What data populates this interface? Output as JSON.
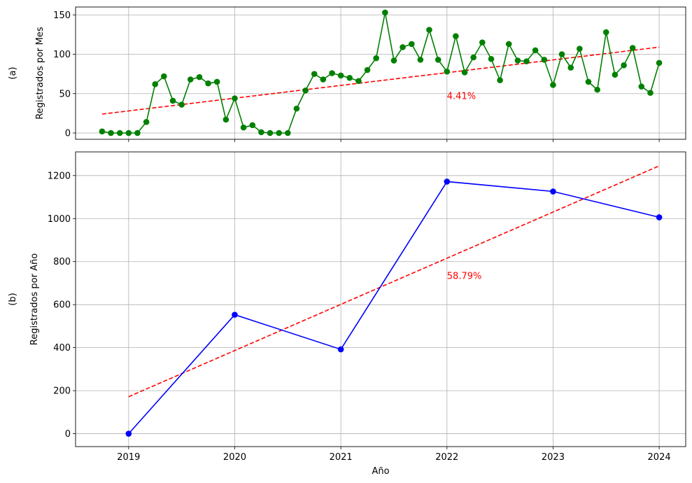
{
  "chart_data": [
    {
      "type": "line",
      "panel_label": "(a)",
      "ylabel": "Registrados por Mes",
      "xlabel": "",
      "ylim": [
        -8,
        160
      ],
      "yticks": [
        0,
        50,
        100,
        150
      ],
      "grid": true,
      "series": [
        {
          "color": "#008000",
          "marker": "circle",
          "x": [
            2018.75,
            2018.833,
            2018.917,
            2019.0,
            2019.083,
            2019.167,
            2019.25,
            2019.333,
            2019.417,
            2019.5,
            2019.583,
            2019.667,
            2019.75,
            2019.833,
            2019.917,
            2020.0,
            2020.083,
            2020.167,
            2020.25,
            2020.333,
            2020.417,
            2020.5,
            2020.583,
            2020.667,
            2020.75,
            2020.833,
            2020.917,
            2021.0,
            2021.083,
            2021.167,
            2021.25,
            2021.333,
            2021.417,
            2021.5,
            2021.583,
            2021.667,
            2021.75,
            2021.833,
            2021.917,
            2022.0,
            2022.083,
            2022.167,
            2022.25,
            2022.333,
            2022.417,
            2022.5,
            2022.583,
            2022.667,
            2022.75,
            2022.833,
            2022.917,
            2023.0,
            2023.083,
            2023.167,
            2023.25,
            2023.333,
            2023.417,
            2023.5,
            2023.583,
            2023.667,
            2023.75,
            2023.833,
            2023.917,
            2024.0
          ],
          "y": [
            2,
            0,
            0,
            0,
            0,
            14,
            62,
            72,
            41,
            36,
            68,
            71,
            63,
            65,
            17,
            44,
            7,
            10,
            1,
            0,
            0,
            0,
            31,
            54,
            75,
            68,
            76,
            73,
            70,
            66,
            80,
            95,
            153,
            92,
            109,
            113,
            93,
            131,
            93,
            78,
            123,
            77,
            96,
            115,
            94,
            67,
            113,
            92,
            91,
            105,
            93,
            61,
            100,
            83,
            107,
            65,
            55,
            128,
            74,
            86,
            108,
            59,
            51,
            89
          ]
        }
      ],
      "trend": {
        "style": "dashed",
        "color": "#ff0000",
        "x": [
          2018.75,
          2024.0
        ],
        "y": [
          24,
          109
        ]
      },
      "annotation": {
        "text": "4.41%",
        "x": 2022.0,
        "y": 43,
        "color": "#ff0000"
      }
    },
    {
      "type": "line",
      "panel_label": "(b)",
      "ylabel": "Registrados por Año",
      "xlabel": "Año",
      "ylim": [
        -60,
        1310
      ],
      "yticks": [
        0,
        200,
        400,
        600,
        800,
        1000,
        1200
      ],
      "grid": true,
      "series": [
        {
          "color": "#0000ff",
          "marker": "circle",
          "x": [
            2019,
            2020,
            2021,
            2022,
            2023,
            2024
          ],
          "y": [
            0,
            553,
            392,
            1172,
            1126,
            1006
          ]
        }
      ],
      "trend": {
        "style": "dashed",
        "color": "#ff0000",
        "x": [
          2019,
          2024
        ],
        "y": [
          172,
          1245
        ]
      },
      "annotation": {
        "text": "58.79%",
        "x": 2022.0,
        "y": 720,
        "color": "#ff0000"
      }
    }
  ],
  "shared_x": {
    "xlim": [
      2018.5,
      2024.25
    ],
    "ticks": [
      2019,
      2020,
      2021,
      2022,
      2023,
      2024
    ],
    "tick_labels": [
      "2019",
      "2020",
      "2021",
      "2022",
      "2023",
      "2024"
    ]
  }
}
